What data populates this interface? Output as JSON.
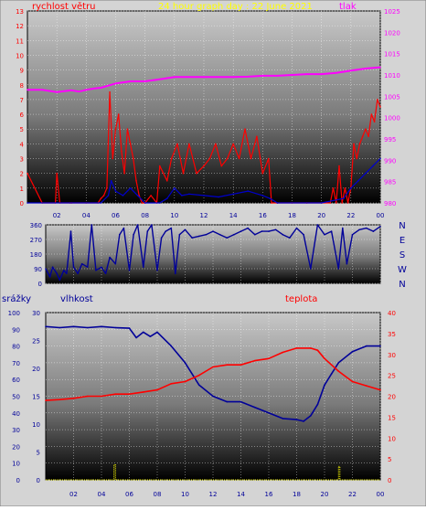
{
  "colors": {
    "frame": "#d4d4d4",
    "wind": "#ff0000",
    "gust": "#0000cc",
    "pressure": "#ff00ff",
    "direction": "#000099",
    "humidity": "#000099",
    "temperature": "#ff0000",
    "rain": "#ffff00",
    "grid": "#ffffff",
    "title": "#ffff00"
  },
  "chart_data": [
    {
      "type": "line",
      "title": "24 hour graph day : 22 June 2021",
      "left_label": "rychlost větru",
      "right_label": "tlak",
      "xticks": [
        "02",
        "04",
        "06",
        "08",
        "10",
        "12",
        "14",
        "16",
        "18",
        "20",
        "22",
        "00"
      ],
      "y_left": {
        "ticks": [
          "0",
          "1",
          "2",
          "3",
          "4",
          "5",
          "6",
          "7",
          "8",
          "9",
          "10",
          "11",
          "12",
          "13"
        ],
        "ylim": [
          0,
          13
        ]
      },
      "y_right": {
        "ticks": [
          "980",
          "985",
          "990",
          "995",
          "1000",
          "1005",
          "1010",
          "1015",
          "1020",
          "1025"
        ],
        "ylim": [
          980,
          1025
        ]
      },
      "grid": true,
      "series": [
        {
          "id": "wind",
          "axis": "left",
          "x": [
            0.0,
            1.0,
            1.9,
            2.0,
            2.2,
            2.9,
            3.0,
            4.0,
            4.8,
            5.0,
            5.2,
            5.4,
            5.6,
            5.8,
            6.0,
            6.2,
            6.4,
            6.6,
            6.8,
            7.0,
            7.2,
            7.4,
            7.6,
            7.8,
            8.0,
            8.4,
            8.8,
            9.0,
            9.5,
            9.8,
            10.2,
            10.6,
            11.0,
            11.5,
            12.0,
            12.4,
            12.8,
            13.2,
            13.6,
            14.0,
            14.4,
            14.8,
            15.2,
            15.6,
            16.0,
            16.4,
            16.6,
            17.0,
            18.0,
            19.0,
            20.0,
            20.6,
            20.8,
            21.0,
            21.2,
            21.4,
            21.6,
            21.8,
            22.0,
            22.2,
            22.4,
            22.6,
            22.8,
            23.0,
            23.2,
            23.4,
            23.6,
            23.8,
            24.0
          ],
          "y": [
            2,
            0,
            0,
            2,
            0,
            0,
            0,
            0,
            0,
            0.3,
            0.5,
            1,
            7.5,
            3,
            5,
            6,
            3.5,
            2,
            5,
            4,
            3,
            1.5,
            0.5,
            0,
            0,
            0.5,
            0,
            2.5,
            1.5,
            3,
            4,
            2,
            4,
            2,
            2.5,
            3,
            4,
            2.5,
            3,
            4,
            3,
            5,
            3,
            4.5,
            2,
            3,
            0,
            0,
            0,
            0,
            0,
            0,
            1,
            0,
            2.5,
            0,
            1,
            0,
            1,
            4,
            3,
            4,
            4.5,
            5,
            4.5,
            6,
            5.5,
            7,
            6.5
          ]
        },
        {
          "id": "gust",
          "axis": "left",
          "x": [
            0,
            5.0,
            5.5,
            5.7,
            6.0,
            6.5,
            7.0,
            7.5,
            8.0,
            9.0,
            9.5,
            10.0,
            10.5,
            11.0,
            12.0,
            13.0,
            14.0,
            15.0,
            16.0,
            16.5,
            17,
            20,
            21.5,
            22.0,
            22.5,
            23.0,
            23.5,
            24.0
          ],
          "y": [
            0,
            0,
            0.5,
            1.5,
            0.8,
            0.5,
            1,
            0.5,
            0,
            0,
            0.3,
            1,
            0.5,
            0.6,
            0.5,
            0.4,
            0.6,
            0.8,
            0.5,
            0.3,
            0,
            0,
            0.3,
            1,
            1.5,
            2,
            2.5,
            3
          ]
        },
        {
          "id": "pressure",
          "axis": "right",
          "x": [
            0,
            1,
            2,
            3,
            3.5,
            4,
            4.5,
            5.0,
            5.5,
            6,
            7,
            8,
            9,
            10,
            11,
            12,
            13,
            14,
            15,
            16,
            17,
            18,
            19,
            20,
            21,
            22,
            23,
            24
          ],
          "y": [
            1006.5,
            1006.5,
            1006,
            1006.4,
            1006.1,
            1006.5,
            1006.8,
            1007,
            1007.5,
            1008,
            1008.5,
            1008.5,
            1009,
            1009.5,
            1009.5,
            1009.5,
            1009.5,
            1009.5,
            1009.6,
            1009.8,
            1009.8,
            1010,
            1010.2,
            1010.2,
            1010.5,
            1011,
            1011.5,
            1011.8
          ]
        }
      ]
    },
    {
      "type": "line",
      "title": "",
      "left_ticks": [
        "0",
        "90",
        "180",
        "270",
        "360"
      ],
      "right_labels": [
        "N",
        "W",
        "S",
        "E",
        "N"
      ],
      "ylim": [
        0,
        360
      ],
      "xticks": [],
      "series": [
        {
          "id": "direction",
          "x": [
            0,
            0.3,
            0.5,
            0.8,
            1.0,
            1.3,
            1.5,
            1.8,
            2.0,
            2.3,
            2.6,
            3.0,
            3.3,
            3.6,
            4.0,
            4.3,
            4.6,
            5.0,
            5.3,
            5.6,
            6.0,
            6.3,
            6.6,
            7.0,
            7.3,
            7.6,
            8.0,
            8.3,
            8.6,
            9.0,
            9.3,
            9.6,
            10.0,
            10.5,
            11.0,
            11.5,
            12.0,
            12.5,
            13.0,
            13.5,
            14.0,
            14.5,
            15.0,
            15.5,
            16.0,
            16.5,
            17.0,
            17.5,
            18.0,
            18.5,
            19.0,
            19.5,
            20.0,
            20.5,
            21.0,
            21.3,
            21.6,
            22.0,
            22.5,
            23.0,
            23.5,
            24.0
          ],
          "y": [
            90,
            40,
            100,
            60,
            20,
            80,
            60,
            320,
            100,
            60,
            120,
            100,
            360,
            80,
            100,
            60,
            160,
            120,
            300,
            340,
            80,
            300,
            360,
            100,
            320,
            360,
            80,
            280,
            320,
            340,
            60,
            300,
            330,
            280,
            290,
            300,
            320,
            300,
            280,
            300,
            320,
            340,
            300,
            320,
            320,
            330,
            300,
            280,
            340,
            300,
            90,
            360,
            300,
            320,
            90,
            340,
            120,
            300,
            330,
            340,
            320,
            350
          ]
        }
      ]
    },
    {
      "type": "line",
      "title": "",
      "labels": {
        "rain": "srážky",
        "humidity": "vlhkost",
        "temperature": "teplota"
      },
      "xticks": [
        "02",
        "04",
        "06",
        "08",
        "10",
        "12",
        "14",
        "16",
        "18",
        "20",
        "22",
        "00"
      ],
      "y_rain": {
        "ticks": [
          "0",
          "10",
          "20",
          "30",
          "40",
          "50",
          "60",
          "70",
          "80",
          "90",
          "100"
        ],
        "ylim": [
          0,
          100
        ]
      },
      "y_humidity": {
        "ticks": [
          "0",
          "5",
          "10",
          "15",
          "20",
          "25",
          "30"
        ],
        "ylim": [
          0,
          30
        ]
      },
      "y_temperature": {
        "ticks": [
          "0",
          "5",
          "10",
          "15",
          "20",
          "25",
          "30",
          "35",
          "40"
        ],
        "ylim": [
          0,
          40
        ]
      },
      "grid": true,
      "series": [
        {
          "id": "humidity",
          "axis": "humidity",
          "x": [
            0,
            1,
            2,
            3,
            4,
            5,
            6,
            6.5,
            7,
            7.5,
            8,
            9,
            10,
            11,
            12,
            13,
            14,
            15,
            16,
            17,
            18,
            18.5,
            19,
            19.5,
            20,
            20.5,
            21,
            22,
            23,
            24
          ],
          "y": [
            27.5,
            27.3,
            27.5,
            27.3,
            27.5,
            27.3,
            27.2,
            25.5,
            26.5,
            25.7,
            26.5,
            24,
            21,
            17,
            15,
            14,
            14,
            13,
            12,
            11,
            10.8,
            10.5,
            11.5,
            13.5,
            17,
            19,
            21,
            23,
            24,
            24
          ]
        },
        {
          "id": "temperature",
          "axis": "temperature",
          "x": [
            0,
            1,
            2,
            3,
            4,
            5,
            6,
            7,
            8,
            9,
            10,
            11,
            12,
            13,
            14,
            15,
            16,
            17,
            18,
            19,
            19.5,
            20,
            21,
            22,
            23,
            24
          ],
          "y": [
            19,
            19.2,
            19.5,
            20,
            20,
            20.5,
            20.5,
            21,
            21.5,
            23,
            23.5,
            25,
            27,
            27.5,
            27.5,
            28.5,
            29,
            30.5,
            31.5,
            31.5,
            31,
            29,
            26,
            23.5,
            22.5,
            21.5
          ]
        },
        {
          "id": "rain",
          "axis": "rain",
          "x": [
            0,
            4.9,
            4.9,
            5.0,
            5.0,
            21.0,
            21.0,
            21.1,
            21.1,
            24
          ],
          "y": [
            0,
            0,
            9,
            9,
            0,
            0,
            8,
            8,
            0,
            0
          ]
        }
      ]
    }
  ]
}
